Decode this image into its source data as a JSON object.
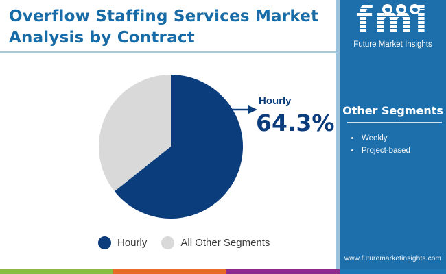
{
  "header": {
    "title_line1": "Overflow Staffing Services Market",
    "title_line2": "Analysis by Contract"
  },
  "logo": {
    "acronym": "fmi",
    "name": "Future Market Insights",
    "icons": [
      "map-icon",
      "compass-icon",
      "globe-icon"
    ]
  },
  "sidebar": {
    "heading": "Other Segments",
    "items": [
      "Weekly",
      "Project-based"
    ],
    "website": "www.futuremarketinsights.com"
  },
  "chart_data": {
    "type": "pie",
    "title": "Overflow Staffing Services Market Analysis by Contract",
    "categories": [
      "Hourly",
      "All Other Segments"
    ],
    "values": [
      64.3,
      35.7
    ],
    "colors": [
      "#0B3C7B",
      "#D9D9D9"
    ],
    "start": "top",
    "direction": "clockwise",
    "callout": {
      "label": "Hourly",
      "value_label": "64.3%",
      "value": 64.3
    },
    "legend_position": "bottom"
  },
  "footer": {
    "strip_colors": [
      "#86BE42",
      "#E96A24",
      "#8D2B8D",
      "#1E78B8"
    ]
  },
  "colors": {
    "title_blue": "#176BA6",
    "sidebar_blue": "#1D6FAC",
    "sidebar_edge": "#9CC3DB",
    "navy": "#0B3C7B",
    "divider": "#A9C7D4",
    "underline": "#CFE3F0",
    "legend_text": "#3A3A3A"
  }
}
